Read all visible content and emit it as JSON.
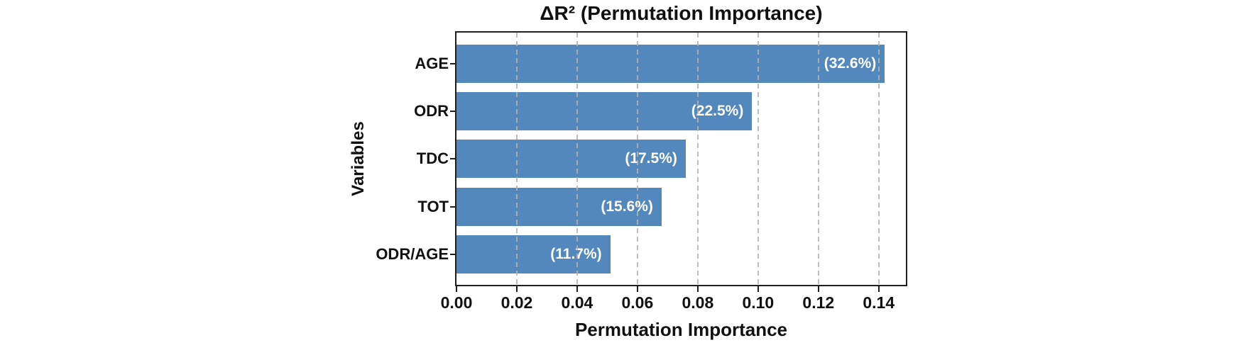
{
  "chart_data": {
    "type": "bar",
    "orientation": "horizontal",
    "title": "ΔR² (Permutation Importance)",
    "xlabel": "Permutation Importance",
    "ylabel": "Variables",
    "categories": [
      "AGE",
      "ODR",
      "TDC",
      "TOT",
      "ODR/AGE"
    ],
    "values": [
      0.142,
      0.098,
      0.076,
      0.068,
      0.051
    ],
    "bar_labels": [
      "(32.6%)",
      "(22.5%)",
      "(17.5%)",
      "(15.6%)",
      "(11.7%)"
    ],
    "percentages": [
      32.6,
      22.5,
      17.5,
      15.6,
      11.7
    ],
    "xlim": [
      0,
      0.149
    ],
    "xticks": [
      {
        "value": 0.0,
        "label": "0.00"
      },
      {
        "value": 0.02,
        "label": "0.02"
      },
      {
        "value": 0.04,
        "label": "0.04"
      },
      {
        "value": 0.06,
        "label": "0.06"
      },
      {
        "value": 0.08,
        "label": "0.08"
      },
      {
        "value": 0.1,
        "label": "0.10"
      },
      {
        "value": 0.12,
        "label": "0.12"
      },
      {
        "value": 0.14,
        "label": "0.14"
      }
    ],
    "grid": {
      "axis": "x",
      "style": "dashed",
      "position": "over-bars"
    },
    "legend": "none",
    "colors": {
      "bar": "#5288BB",
      "bar_label_text": "#ffffff",
      "spine": "#1f1f1f",
      "text": "#111111",
      "background": "#ffffff",
      "gridline": "#b2b2b2"
    }
  }
}
